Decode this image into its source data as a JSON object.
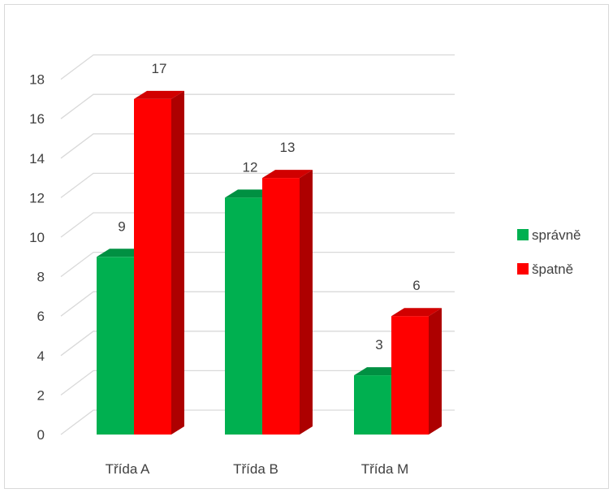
{
  "chart_data": {
    "type": "bar",
    "style": "3d-clustered-column",
    "categories": [
      "Třída A",
      "Třída B",
      "Třída M"
    ],
    "series": [
      {
        "name": "správně",
        "values": [
          9,
          12,
          3
        ],
        "color": "#00b050"
      },
      {
        "name": "špatně",
        "values": [
          17,
          13,
          6
        ],
        "color": "#ff0000"
      }
    ],
    "yticks": [
      "0",
      "2",
      "4",
      "6",
      "8",
      "10",
      "12",
      "14",
      "16",
      "18"
    ],
    "ylim": [
      0,
      18
    ],
    "grid": true,
    "legend_position": "right",
    "data_labels": true
  }
}
